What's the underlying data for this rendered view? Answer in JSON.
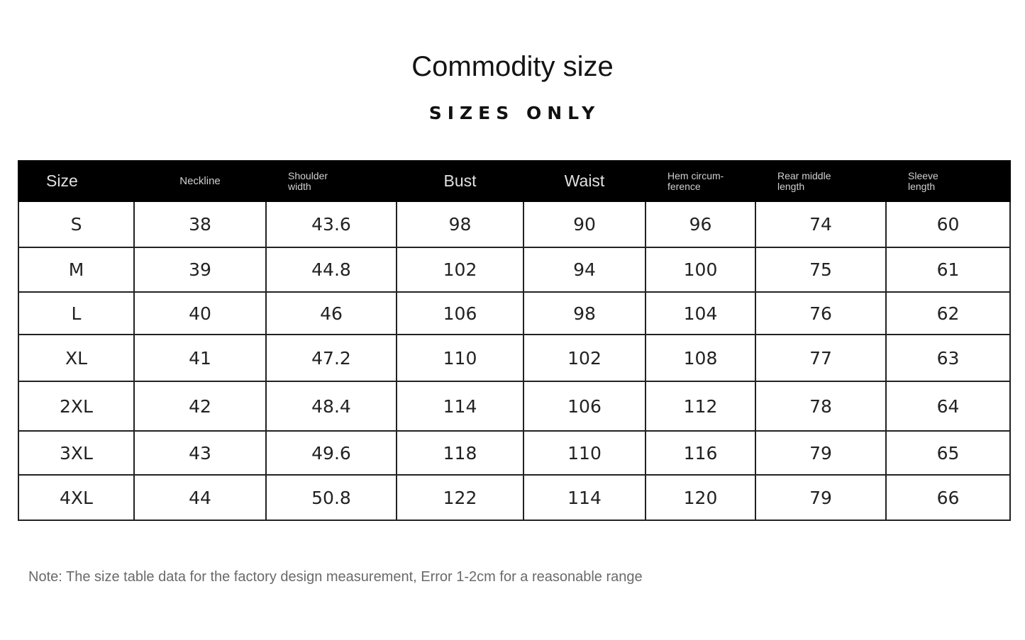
{
  "title": "Commodity size",
  "subtitle": "SIZES ONLY",
  "table": {
    "headers": [
      {
        "label": "Size",
        "style": "size"
      },
      {
        "label": "Neckline",
        "style": "small"
      },
      {
        "label": "Shoulder width",
        "style": "two",
        "line1": "Shoulder",
        "line2": "width"
      },
      {
        "label": "Bust",
        "style": "big"
      },
      {
        "label": "Waist",
        "style": "big"
      },
      {
        "label": "Hem circumference",
        "style": "two",
        "line1": "Hem circum-",
        "line2": "ference"
      },
      {
        "label": "Rear middle length",
        "style": "two",
        "line1": "Rear middle",
        "line2": "length"
      },
      {
        "label": "Sleeve length",
        "style": "two",
        "line1": "Sleeve",
        "line2": "length"
      }
    ],
    "rows": [
      [
        "S",
        "38",
        "43.6",
        "98",
        "90",
        "96",
        "74",
        "60"
      ],
      [
        "M",
        "39",
        "44.8",
        "102",
        "94",
        "100",
        "75",
        "61"
      ],
      [
        "L",
        "40",
        "46",
        "106",
        "98",
        "104",
        "76",
        "62"
      ],
      [
        "XL",
        "41",
        "47.2",
        "110",
        "102",
        "108",
        "77",
        "63"
      ],
      [
        "2XL",
        "42",
        "48.4",
        "114",
        "106",
        "112",
        "78",
        "64"
      ],
      [
        "3XL",
        "43",
        "49.6",
        "118",
        "110",
        "116",
        "79",
        "65"
      ],
      [
        "4XL",
        "44",
        "50.8",
        "122",
        "114",
        "120",
        "79",
        "66"
      ]
    ]
  },
  "note": "Note: The size table data for the factory design measurement, Error 1-2cm for a reasonable range",
  "colors": {
    "header_background": "#000000",
    "header_text": "#dddddd",
    "border": "#222222",
    "note_text": "#6a6a6a"
  }
}
